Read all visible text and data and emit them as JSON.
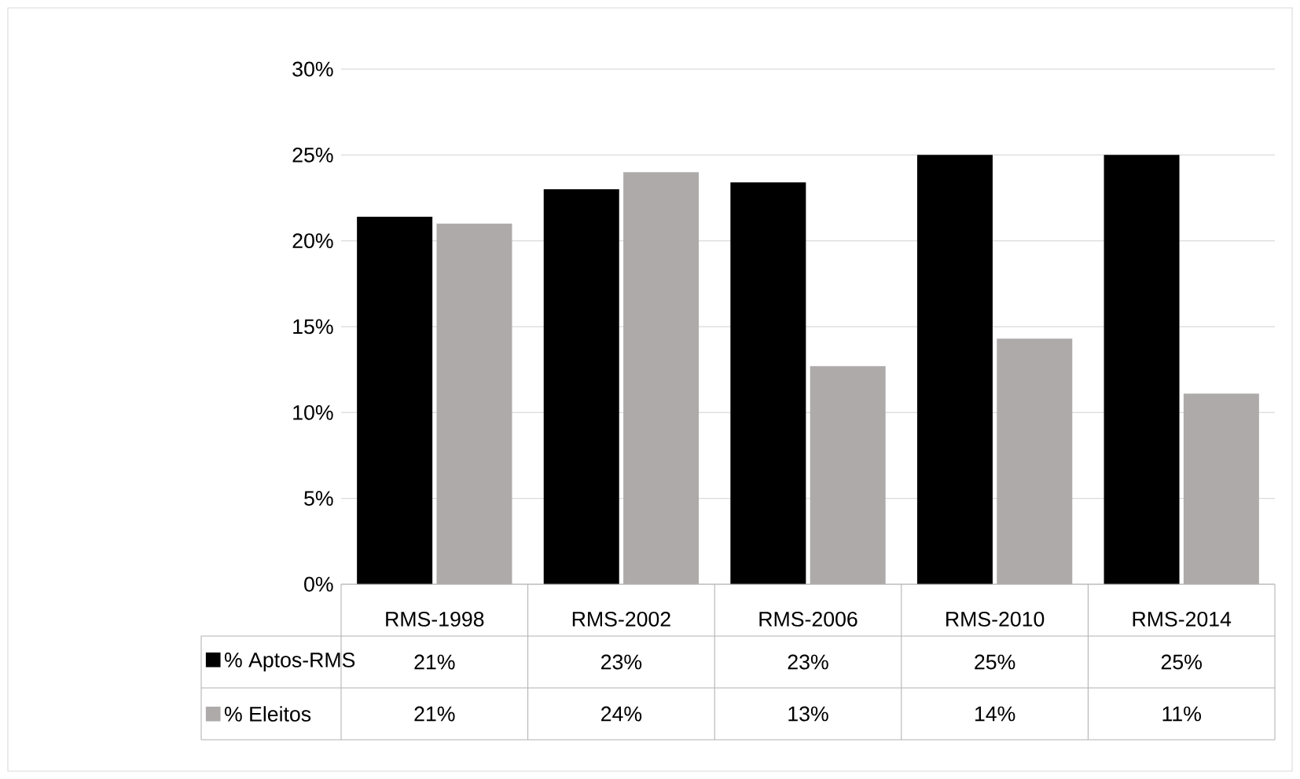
{
  "chart_data": {
    "type": "bar",
    "categories": [
      "RMS-1998",
      "RMS-2002",
      "RMS-2006",
      "RMS-2010",
      "RMS-2014"
    ],
    "series": [
      {
        "name": "% Aptos-RMS",
        "color": "#000000",
        "values": [
          21.4,
          23,
          23.4,
          25,
          25
        ],
        "value_labels": [
          "21%",
          "23%",
          "23%",
          "25%",
          "25%"
        ]
      },
      {
        "name": "% Eleitos",
        "color": "#aeaaaa",
        "values": [
          21,
          24,
          12.7,
          14.3,
          11.1
        ],
        "value_labels": [
          "21%",
          "24%",
          "13%",
          "14%",
          "11%"
        ]
      }
    ],
    "ylim": [
      0,
      30
    ],
    "yticks": [
      {
        "value": 0,
        "label": "0%"
      },
      {
        "value": 5,
        "label": "5%"
      },
      {
        "value": 10,
        "label": "10%"
      },
      {
        "value": 15,
        "label": "15%"
      },
      {
        "value": 20,
        "label": "20%"
      },
      {
        "value": 25,
        "label": "25%"
      },
      {
        "value": 30,
        "label": "30%"
      }
    ],
    "grid": "y",
    "legend": "bottom left"
  }
}
